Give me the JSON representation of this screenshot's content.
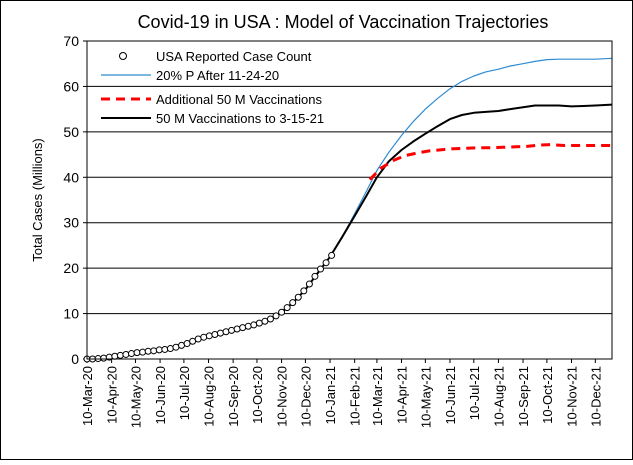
{
  "chart_data": {
    "type": "line",
    "title": "Covid-19 in USA  : Model of Vaccination Trajectories",
    "ylabel": "Total Cases (Millions)",
    "xlabel": "",
    "ylim": [
      0,
      70
    ],
    "yticks": [
      "0",
      "10",
      "20",
      "30",
      "40",
      "50",
      "60",
      "70"
    ],
    "xlim": [
      "2020-03-10",
      "2021-12-31"
    ],
    "xticks": [
      {
        "date": "2020-03-10",
        "label": "10-Mar-20"
      },
      {
        "date": "2020-04-10",
        "label": "10-Apr-20"
      },
      {
        "date": "2020-05-10",
        "label": "10-May-20"
      },
      {
        "date": "2020-06-10",
        "label": "10-Jun-20"
      },
      {
        "date": "2020-07-10",
        "label": "10-Jul-20"
      },
      {
        "date": "2020-08-10",
        "label": "10-Aug-20"
      },
      {
        "date": "2020-09-10",
        "label": "10-Sep-20"
      },
      {
        "date": "2020-10-10",
        "label": "10-Oct-20"
      },
      {
        "date": "2020-11-10",
        "label": "10-Nov-20"
      },
      {
        "date": "2020-12-10",
        "label": "10-Dec-20"
      },
      {
        "date": "2021-01-10",
        "label": "10-Jan-21"
      },
      {
        "date": "2021-02-10",
        "label": "10-Feb-21"
      },
      {
        "date": "2021-03-10",
        "label": "10-Mar-21"
      },
      {
        "date": "2021-04-10",
        "label": "10-Apr-21"
      },
      {
        "date": "2021-05-10",
        "label": "10-May-21"
      },
      {
        "date": "2021-06-10",
        "label": "10-Jun-21"
      },
      {
        "date": "2021-07-10",
        "label": "10-Jul-21"
      },
      {
        "date": "2021-08-10",
        "label": "10-Aug-21"
      },
      {
        "date": "2021-09-10",
        "label": "10-Sep-21"
      },
      {
        "date": "2021-10-10",
        "label": "10-Oct-21"
      },
      {
        "date": "2021-11-10",
        "label": "10-Nov-21"
      },
      {
        "date": "2021-12-10",
        "label": "10-Dec-21"
      }
    ],
    "grid": {
      "horizontal": true,
      "vertical": false
    },
    "legend_position": "top-left",
    "series": [
      {
        "name": "USA Reported Case Count",
        "style": "markers",
        "color": "#000000",
        "points": [
          [
            "2020-03-10",
            0.0
          ],
          [
            "2020-03-17",
            0.0
          ],
          [
            "2020-03-24",
            0.1
          ],
          [
            "2020-03-31",
            0.2
          ],
          [
            "2020-04-07",
            0.4
          ],
          [
            "2020-04-14",
            0.6
          ],
          [
            "2020-04-21",
            0.8
          ],
          [
            "2020-04-28",
            1.0
          ],
          [
            "2020-05-05",
            1.2
          ],
          [
            "2020-05-12",
            1.4
          ],
          [
            "2020-05-19",
            1.5
          ],
          [
            "2020-05-26",
            1.7
          ],
          [
            "2020-06-02",
            1.8
          ],
          [
            "2020-06-09",
            2.0
          ],
          [
            "2020-06-16",
            2.1
          ],
          [
            "2020-06-23",
            2.3
          ],
          [
            "2020-06-30",
            2.6
          ],
          [
            "2020-07-07",
            3.0
          ],
          [
            "2020-07-14",
            3.4
          ],
          [
            "2020-07-21",
            3.9
          ],
          [
            "2020-07-28",
            4.4
          ],
          [
            "2020-08-04",
            4.8
          ],
          [
            "2020-08-11",
            5.1
          ],
          [
            "2020-08-18",
            5.4
          ],
          [
            "2020-08-25",
            5.7
          ],
          [
            "2020-09-01",
            6.0
          ],
          [
            "2020-09-08",
            6.3
          ],
          [
            "2020-09-15",
            6.6
          ],
          [
            "2020-09-22",
            6.9
          ],
          [
            "2020-09-29",
            7.2
          ],
          [
            "2020-10-06",
            7.5
          ],
          [
            "2020-10-13",
            7.9
          ],
          [
            "2020-10-20",
            8.3
          ],
          [
            "2020-10-27",
            8.8
          ],
          [
            "2020-11-03",
            9.5
          ],
          [
            "2020-11-10",
            10.3
          ],
          [
            "2020-11-17",
            11.3
          ],
          [
            "2020-11-24",
            12.4
          ],
          [
            "2020-12-01",
            13.6
          ],
          [
            "2020-12-08",
            15.0
          ],
          [
            "2020-12-15",
            16.5
          ],
          [
            "2020-12-22",
            18.2
          ],
          [
            "2020-12-29",
            19.8
          ],
          [
            "2021-01-05",
            21.2
          ],
          [
            "2021-01-12",
            22.8
          ]
        ]
      },
      {
        "name": "20% P After 11-24-20",
        "style": "line",
        "color": "#2e8bd1",
        "points": [
          [
            "2020-11-24",
            12.4
          ],
          [
            "2020-12-10",
            15.3
          ],
          [
            "2020-12-25",
            18.8
          ],
          [
            "2021-01-10",
            22.5
          ],
          [
            "2021-01-25",
            26.8
          ],
          [
            "2021-02-10",
            32.0
          ],
          [
            "2021-02-25",
            37.0
          ],
          [
            "2021-03-10",
            41.5
          ],
          [
            "2021-03-25",
            45.5
          ],
          [
            "2021-04-10",
            49.2
          ],
          [
            "2021-04-25",
            52.3
          ],
          [
            "2021-05-10",
            55.0
          ],
          [
            "2021-05-25",
            57.3
          ],
          [
            "2021-06-10",
            59.5
          ],
          [
            "2021-06-25",
            61.1
          ],
          [
            "2021-07-10",
            62.3
          ],
          [
            "2021-07-25",
            63.2
          ],
          [
            "2021-08-10",
            63.8
          ],
          [
            "2021-08-25",
            64.5
          ],
          [
            "2021-09-10",
            65.0
          ],
          [
            "2021-09-25",
            65.5
          ],
          [
            "2021-10-10",
            65.9
          ],
          [
            "2021-10-25",
            66.0
          ],
          [
            "2021-11-10",
            66.0
          ],
          [
            "2021-11-25",
            66.0
          ],
          [
            "2021-12-10",
            66.0
          ],
          [
            "2021-12-31",
            66.2
          ]
        ]
      },
      {
        "name": "Additional 50 M Vaccinations",
        "style": "dashed",
        "color": "#ff0000",
        "points": [
          [
            "2021-03-01",
            39.5
          ],
          [
            "2021-03-15",
            42.0
          ],
          [
            "2021-04-01",
            43.8
          ],
          [
            "2021-04-15",
            44.8
          ],
          [
            "2021-05-01",
            45.4
          ],
          [
            "2021-05-15",
            45.8
          ],
          [
            "2021-06-01",
            46.1
          ],
          [
            "2021-06-15",
            46.3
          ],
          [
            "2021-07-01",
            46.4
          ],
          [
            "2021-07-15",
            46.5
          ],
          [
            "2021-08-01",
            46.5
          ],
          [
            "2021-08-15",
            46.6
          ],
          [
            "2021-09-01",
            46.7
          ],
          [
            "2021-09-15",
            46.8
          ],
          [
            "2021-10-01",
            47.1
          ],
          [
            "2021-10-15",
            47.2
          ],
          [
            "2021-11-01",
            47.0
          ],
          [
            "2021-11-15",
            47.0
          ],
          [
            "2021-12-01",
            47.0
          ],
          [
            "2021-12-31",
            47.0
          ]
        ]
      },
      {
        "name": "50 M Vaccinations to 3-15-21",
        "style": "line",
        "color": "#000000",
        "points": [
          [
            "2020-03-10",
            0.0
          ],
          [
            "2020-03-25",
            0.1
          ],
          [
            "2020-04-10",
            0.5
          ],
          [
            "2020-04-25",
            1.0
          ],
          [
            "2020-05-10",
            1.5
          ],
          [
            "2020-05-25",
            1.7
          ],
          [
            "2020-06-10",
            1.8
          ],
          [
            "2020-06-25",
            2.2
          ],
          [
            "2020-07-10",
            3.1
          ],
          [
            "2020-07-25",
            4.1
          ],
          [
            "2020-08-10",
            5.0
          ],
          [
            "2020-08-25",
            5.6
          ],
          [
            "2020-09-10",
            6.2
          ],
          [
            "2020-09-25",
            6.8
          ],
          [
            "2020-10-10",
            7.6
          ],
          [
            "2020-10-25",
            8.6
          ],
          [
            "2020-11-10",
            10.3
          ],
          [
            "2020-11-25",
            12.5
          ],
          [
            "2020-12-10",
            15.3
          ],
          [
            "2020-12-25",
            18.8
          ],
          [
            "2021-01-10",
            22.5
          ],
          [
            "2021-01-25",
            26.8
          ],
          [
            "2021-02-10",
            31.5
          ],
          [
            "2021-02-25",
            36.0
          ],
          [
            "2021-03-10",
            40.0
          ],
          [
            "2021-03-25",
            43.5
          ],
          [
            "2021-04-10",
            46.0
          ],
          [
            "2021-04-25",
            47.9
          ],
          [
            "2021-05-10",
            49.6
          ],
          [
            "2021-05-25",
            51.2
          ],
          [
            "2021-06-10",
            52.8
          ],
          [
            "2021-06-25",
            53.7
          ],
          [
            "2021-07-10",
            54.2
          ],
          [
            "2021-07-25",
            54.4
          ],
          [
            "2021-08-10",
            54.6
          ],
          [
            "2021-08-25",
            55.0
          ],
          [
            "2021-09-10",
            55.4
          ],
          [
            "2021-09-25",
            55.8
          ],
          [
            "2021-10-10",
            55.8
          ],
          [
            "2021-10-25",
            55.8
          ],
          [
            "2021-11-10",
            55.6
          ],
          [
            "2021-11-25",
            55.7
          ],
          [
            "2021-12-10",
            55.8
          ],
          [
            "2021-12-31",
            56.0
          ]
        ]
      }
    ]
  }
}
